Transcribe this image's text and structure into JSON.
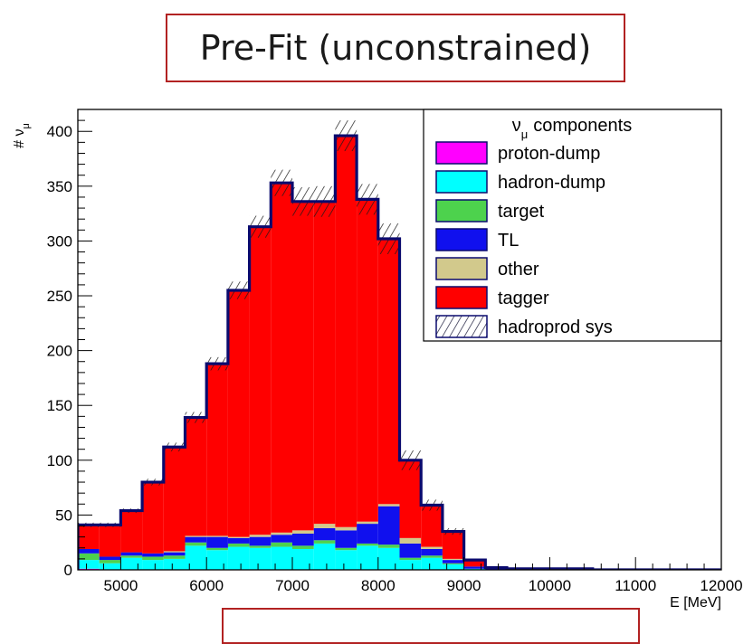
{
  "title": "Pre-Fit (unconstrained)",
  "chart_data": {
    "type": "stacked-histogram",
    "xlabel": "E [MeV]",
    "ylabel_symbol": "ν",
    "ylabel_prefix": "#",
    "ylabel_sub": "μ",
    "xlim": [
      4500,
      12000
    ],
    "ylim": [
      0,
      420
    ],
    "x_ticks": [
      5000,
      6000,
      7000,
      8000,
      9000,
      10000,
      11000,
      12000
    ],
    "y_ticks": [
      0,
      50,
      100,
      150,
      200,
      250,
      300,
      350,
      400
    ],
    "bin_width": 250,
    "bin_edges_start": 4500,
    "bins": 30,
    "legend": {
      "title_symbol": "ν",
      "title_sub": "μ",
      "title_text": "components",
      "entries": [
        {
          "name": "proton-dump",
          "color": "#ff00ff"
        },
        {
          "name": "hadron-dump",
          "color": "#00ffff"
        },
        {
          "name": "target",
          "color": "#4dd24d"
        },
        {
          "name": "TL",
          "color": "#1010ee"
        },
        {
          "name": "other",
          "color": "#d2c98c"
        },
        {
          "name": "tagger",
          "color": "#ff0000"
        },
        {
          "name": "hadroprod sys",
          "color": "hatch"
        }
      ]
    },
    "series": [
      {
        "name": "proton-dump",
        "color": "#ff00ff",
        "values": [
          1,
          0,
          0,
          0,
          0,
          0,
          0,
          0,
          0,
          0,
          0,
          0,
          0,
          0,
          0,
          0,
          0,
          0,
          0,
          0,
          0,
          0,
          0,
          0,
          0,
          0,
          0,
          0,
          0,
          0
        ]
      },
      {
        "name": "hadron-dump",
        "color": "#00ffff",
        "values": [
          8,
          6,
          11,
          9,
          10,
          22,
          18,
          21,
          20,
          21,
          19,
          24,
          18,
          22,
          20,
          9,
          11,
          5,
          1,
          0,
          0,
          0,
          0,
          0,
          0,
          0,
          0,
          0,
          0,
          0
        ]
      },
      {
        "name": "target",
        "color": "#4dd24d",
        "values": [
          6,
          3,
          2,
          3,
          3,
          3,
          2,
          3,
          2,
          4,
          3,
          3,
          2,
          2,
          3,
          2,
          2,
          1,
          0,
          0,
          0,
          0,
          0,
          0,
          0,
          0,
          0,
          0,
          0,
          0
        ]
      },
      {
        "name": "TL",
        "color": "#1010ee",
        "values": [
          4,
          3,
          3,
          3,
          3,
          5,
          10,
          5,
          8,
          7,
          11,
          11,
          16,
          18,
          35,
          13,
          6,
          3,
          2,
          1,
          0,
          0,
          0,
          0,
          0,
          0,
          0,
          0,
          0,
          0
        ]
      },
      {
        "name": "other",
        "color": "#d2c98c",
        "values": [
          0,
          0,
          0,
          0,
          1,
          1,
          1,
          1,
          2,
          2,
          3,
          4,
          3,
          2,
          2,
          5,
          2,
          1,
          0,
          0,
          0,
          0,
          0,
          0,
          0,
          0,
          0,
          0,
          0,
          0
        ]
      },
      {
        "name": "tagger",
        "color": "#ff0000",
        "values": [
          22,
          29,
          38,
          65,
          95,
          108,
          157,
          225,
          281,
          319,
          300,
          294,
          357,
          294,
          242,
          71,
          38,
          25,
          6,
          1,
          1,
          1,
          1,
          1,
          0,
          0,
          0,
          0,
          0,
          0
        ]
      }
    ],
    "sys_band_halfwidth": [
      2,
      2,
      2,
      3,
      4,
      5,
      6,
      8,
      10,
      12,
      13,
      14,
      14,
      14,
      14,
      9,
      5,
      3,
      1,
      0,
      0,
      0,
      0,
      0,
      0,
      0,
      0,
      0,
      0,
      0
    ]
  }
}
